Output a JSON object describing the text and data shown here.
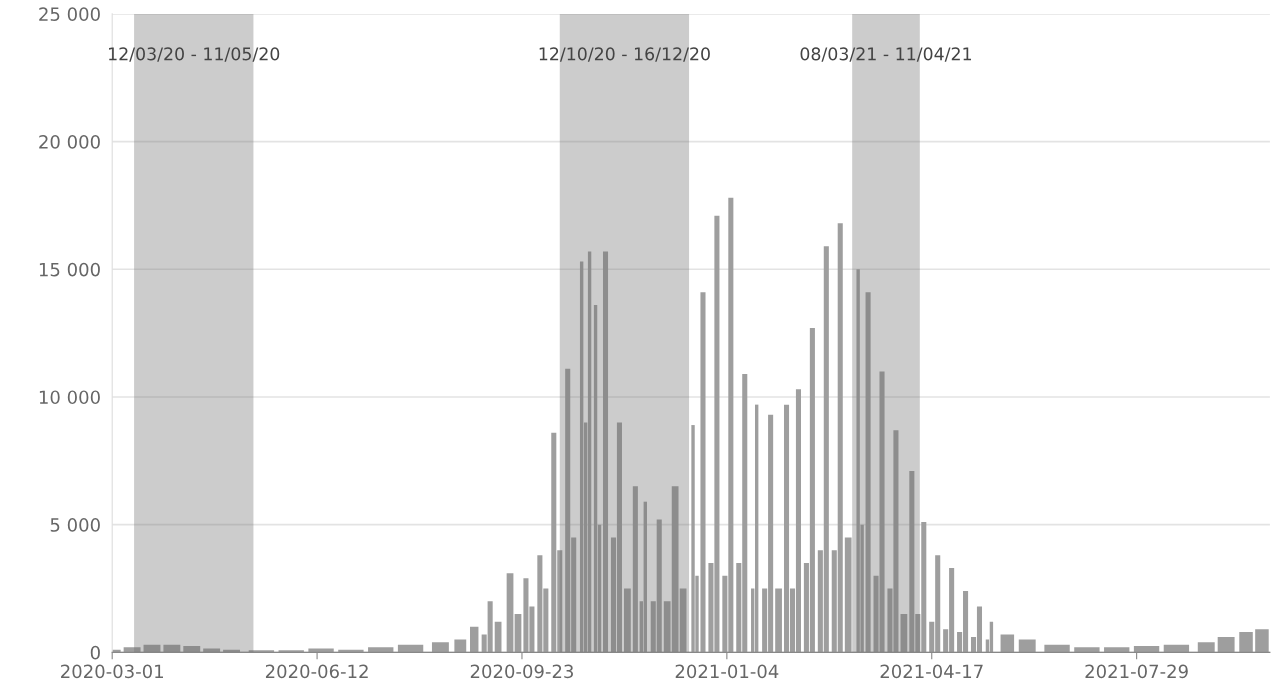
{
  "chart_data": {
    "type": "bar",
    "x": [
      "2020-03-01",
      "2020-03-11",
      "2020-03-21",
      "2020-03-31",
      "2020-04-10",
      "2020-04-20",
      "2020-04-30",
      "2020-05-15",
      "2020-05-30",
      "2020-06-14",
      "2020-06-29",
      "2020-07-14",
      "2020-07-29",
      "2020-08-13",
      "2020-08-23",
      "2020-08-30",
      "2020-09-04",
      "2020-09-07",
      "2020-09-11",
      "2020-09-17",
      "2020-09-21",
      "2020-09-25",
      "2020-09-28",
      "2020-10-02",
      "2020-10-05",
      "2020-10-09",
      "2020-10-12",
      "2020-10-16",
      "2020-10-19",
      "2020-10-23",
      "2020-10-25",
      "2020-10-27",
      "2020-10-30",
      "2020-11-01",
      "2020-11-04",
      "2020-11-08",
      "2020-11-11",
      "2020-11-15",
      "2020-11-19",
      "2020-11-22",
      "2020-11-24",
      "2020-11-28",
      "2020-12-01",
      "2020-12-05",
      "2020-12-09",
      "2020-12-13",
      "2020-12-18",
      "2020-12-20",
      "2020-12-23",
      "2020-12-27",
      "2020-12-30",
      "2021-01-03",
      "2021-01-06",
      "2021-01-10",
      "2021-01-13",
      "2021-01-17",
      "2021-01-19",
      "2021-01-23",
      "2021-01-26",
      "2021-01-30",
      "2021-02-03",
      "2021-02-06",
      "2021-02-09",
      "2021-02-13",
      "2021-02-16",
      "2021-02-20",
      "2021-02-23",
      "2021-02-27",
      "2021-03-02",
      "2021-03-06",
      "2021-03-11",
      "2021-03-13",
      "2021-03-16",
      "2021-03-20",
      "2021-03-23",
      "2021-03-27",
      "2021-03-30",
      "2021-04-03",
      "2021-04-07",
      "2021-04-10",
      "2021-04-13",
      "2021-04-17",
      "2021-04-20",
      "2021-04-24",
      "2021-04-27",
      "2021-05-01",
      "2021-05-04",
      "2021-05-08",
      "2021-05-11",
      "2021-05-15",
      "2021-05-17",
      "2021-05-25",
      "2021-06-04",
      "2021-06-19",
      "2021-07-04",
      "2021-07-19",
      "2021-08-03",
      "2021-08-18",
      "2021-09-02",
      "2021-09-12",
      "2021-09-22",
      "2021-09-30"
    ],
    "values": [
      100,
      200,
      300,
      300,
      250,
      150,
      100,
      80,
      80,
      150,
      100,
      200,
      300,
      400,
      500,
      1000,
      700,
      2000,
      1200,
      3100,
      1500,
      2900,
      1800,
      3800,
      2500,
      8600,
      4000,
      11100,
      4500,
      15300,
      9000,
      15700,
      13600,
      5000,
      15700,
      4500,
      9000,
      2500,
      6500,
      2000,
      5900,
      2000,
      5200,
      2000,
      6500,
      2500,
      8900,
      3000,
      14100,
      3500,
      17100,
      3000,
      17800,
      3500,
      10900,
      2500,
      9700,
      2500,
      9300,
      2500,
      9700,
      2500,
      10300,
      3500,
      12700,
      4000,
      15900,
      4000,
      16800,
      4500,
      15000,
      5000,
      14100,
      3000,
      11000,
      2500,
      8700,
      1500,
      7100,
      1500,
      5100,
      1200,
      3800,
      900,
      3300,
      800,
      2400,
      600,
      1800,
      500,
      1200,
      700,
      500,
      300,
      200,
      200,
      250,
      300,
      400,
      600,
      800,
      900
    ],
    "color": "#9e9e9e",
    "xlim": [
      "2020-03-01",
      "2021-10-04"
    ],
    "xticks": [
      "2020-03-01",
      "2020-06-12",
      "2020-09-23",
      "2021-01-04",
      "2021-04-17",
      "2021-07-29"
    ],
    "ylim": [
      0,
      25000
    ],
    "yticks": [
      0,
      {
        "value": 5000,
        "label": "5 000"
      },
      {
        "value": 10000,
        "label": "10 000"
      },
      {
        "value": 15000,
        "label": "15 000"
      },
      {
        "value": 20000,
        "label": "20 000"
      },
      {
        "value": 25000,
        "label": "25 000"
      }
    ],
    "grid": "y",
    "bands": [
      {
        "axis": "x",
        "from": "2020-03-12",
        "to": "2020-05-11",
        "label": "12/03/20 - 11/05/20",
        "color": "#6e6e6e"
      },
      {
        "axis": "x",
        "from": "2020-10-12",
        "to": "2020-12-16",
        "label": "12/10/20 - 16/12/20",
        "color": "#6e6e6e"
      },
      {
        "axis": "x",
        "from": "2021-03-08",
        "to": "2021-04-11",
        "label": "08/03/21 - 11/04/21",
        "color": "#6e6e6e"
      }
    ]
  }
}
